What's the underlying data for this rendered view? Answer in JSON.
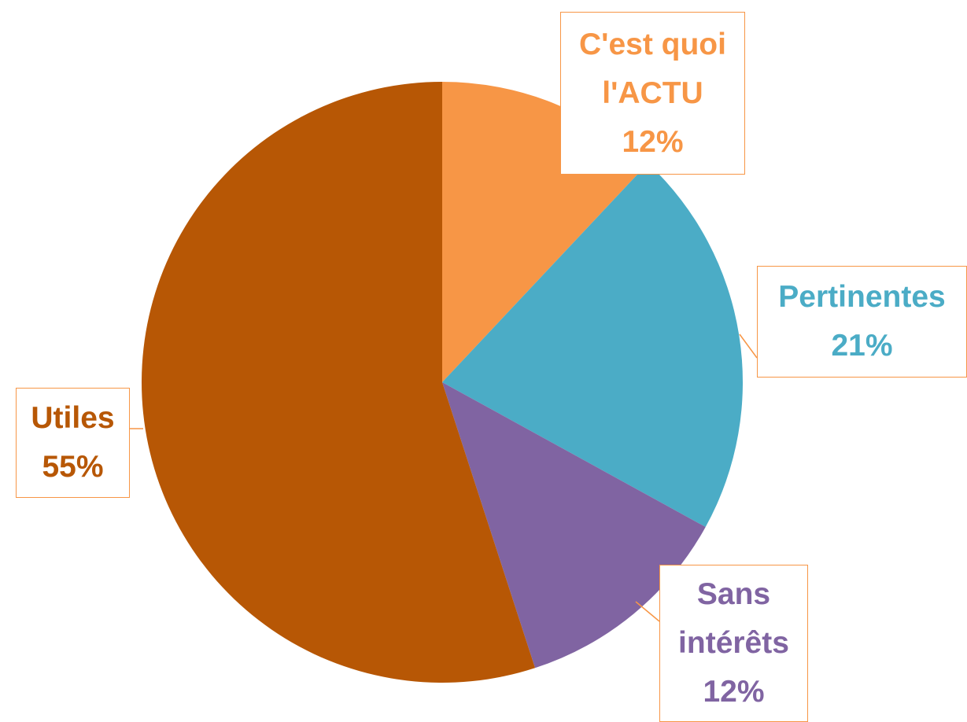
{
  "chart_data": {
    "type": "pie",
    "categories": [
      "C'est quoi l'ACTU",
      "Pertinentes",
      "Sans intérêts",
      "Utiles"
    ],
    "values": [
      12,
      21,
      12,
      55
    ],
    "value_labels": [
      "12%",
      "21%",
      "12%",
      "55%"
    ],
    "colors": [
      "#f79646",
      "#4bacc6",
      "#8064a2",
      "#b75705"
    ],
    "start_angle": 0,
    "direction": "clockwise"
  }
}
